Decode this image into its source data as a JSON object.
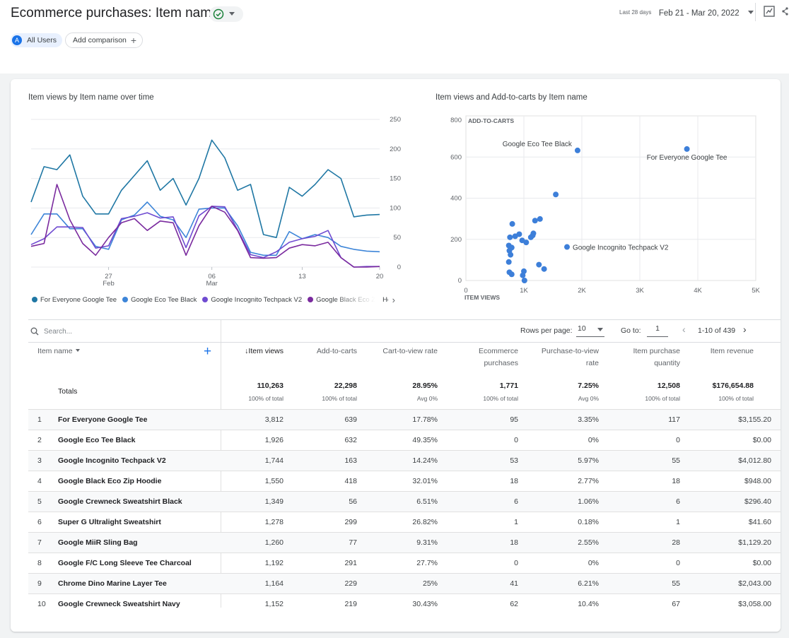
{
  "header": {
    "title": "Ecommerce purchases: Item name",
    "date_range_label": "Last 28 days",
    "date_range_value": "Feb 21 - Mar 20, 2022"
  },
  "comparisons": {
    "all_users_avatar": "A",
    "all_users_label": "All Users",
    "add_label": "Add comparison"
  },
  "line_chart": {
    "title": "Item views by Item name over time",
    "y_ticks": [
      "250",
      "200",
      "150",
      "100",
      "50",
      "0"
    ],
    "x_ticks": [
      {
        "day": "27",
        "month": "Feb"
      },
      {
        "day": "06",
        "month": "Mar"
      },
      {
        "day": "13",
        "month": ""
      },
      {
        "day": "20",
        "month": ""
      }
    ],
    "legend": [
      {
        "label": "For Everyone Google Tee",
        "color": "#1f77a4"
      },
      {
        "label": "Google Eco Tee Black",
        "color": "#3d85d8"
      },
      {
        "label": "Google Incognito Techpack V2",
        "color": "#6f4bd1"
      },
      {
        "label": "Google Black Eco Zip Hoodie",
        "color": "#7a2a9e"
      }
    ]
  },
  "scatter_chart": {
    "title": "Item views and Add-to-carts by Item name",
    "y_axis_label": "ADD-TO-CARTS",
    "x_axis_label": "ITEM VIEWS",
    "y_ticks": [
      "800",
      "600",
      "400",
      "200",
      "0"
    ],
    "x_ticks": [
      "0",
      "1K",
      "2K",
      "3K",
      "4K",
      "5K"
    ],
    "point_labels": [
      "Google Eco Tee Black",
      "For Everyone Google Tee",
      "Google Incognito Techpack V2"
    ]
  },
  "chart_data": [
    {
      "type": "line",
      "title": "Item views by Item name over time",
      "xlabel": "",
      "ylabel": "",
      "ylim": [
        0,
        250
      ],
      "x": [
        "Feb 21",
        "Feb 22",
        "Feb 23",
        "Feb 24",
        "Feb 25",
        "Feb 26",
        "Feb 27",
        "Feb 28",
        "Mar 01",
        "Mar 02",
        "Mar 03",
        "Mar 04",
        "Mar 05",
        "Mar 06",
        "Mar 07",
        "Mar 08",
        "Mar 09",
        "Mar 10",
        "Mar 11",
        "Mar 12",
        "Mar 13",
        "Mar 14",
        "Mar 15",
        "Mar 16",
        "Mar 17",
        "Mar 18",
        "Mar 19",
        "Mar 20"
      ],
      "series": [
        {
          "name": "For Everyone Google Tee",
          "values": [
            110,
            170,
            165,
            190,
            120,
            90,
            90,
            130,
            155,
            180,
            130,
            150,
            105,
            150,
            215,
            185,
            130,
            140,
            55,
            50,
            135,
            120,
            140,
            165,
            150,
            85,
            88,
            89
          ]
        },
        {
          "name": "Google Eco Tee Black",
          "values": [
            55,
            90,
            90,
            65,
            65,
            35,
            30,
            80,
            88,
            110,
            86,
            80,
            50,
            98,
            100,
            100,
            70,
            25,
            20,
            20,
            60,
            48,
            55,
            50,
            35,
            30,
            27,
            26
          ]
        },
        {
          "name": "Google Incognito Techpack V2",
          "values": [
            38,
            48,
            68,
            68,
            67,
            32,
            36,
            82,
            86,
            92,
            83,
            85,
            33,
            87,
            103,
            102,
            63,
            21,
            16,
            26,
            42,
            48,
            52,
            62,
            16,
            0,
            1,
            1
          ]
        },
        {
          "name": "Google Black Eco Zip Hoodie",
          "values": [
            35,
            40,
            140,
            80,
            40,
            20,
            50,
            75,
            82,
            62,
            78,
            75,
            20,
            70,
            103,
            93,
            62,
            16,
            15,
            16,
            32,
            38,
            36,
            42,
            16,
            0,
            0,
            1
          ]
        }
      ]
    },
    {
      "type": "scatter",
      "title": "Item views and Add-to-carts by Item name",
      "xlabel": "ITEM VIEWS",
      "ylabel": "ADD-TO-CARTS",
      "xlim": [
        0,
        5000
      ],
      "ylim": [
        0,
        800
      ],
      "points": [
        {
          "x": 3812,
          "y": 639,
          "label": "For Everyone Google Tee"
        },
        {
          "x": 1926,
          "y": 632,
          "label": "Google Eco Tee Black"
        },
        {
          "x": 1744,
          "y": 163,
          "label": "Google Incognito Techpack V2"
        },
        {
          "x": 1550,
          "y": 418
        },
        {
          "x": 1349,
          "y": 56
        },
        {
          "x": 1278,
          "y": 299
        },
        {
          "x": 1260,
          "y": 77
        },
        {
          "x": 1192,
          "y": 291
        },
        {
          "x": 1164,
          "y": 229
        },
        {
          "x": 1152,
          "y": 219
        },
        {
          "x": 800,
          "y": 275
        },
        {
          "x": 760,
          "y": 210
        },
        {
          "x": 850,
          "y": 215
        },
        {
          "x": 920,
          "y": 225
        },
        {
          "x": 970,
          "y": 195
        },
        {
          "x": 1040,
          "y": 185
        },
        {
          "x": 740,
          "y": 170
        },
        {
          "x": 790,
          "y": 160
        },
        {
          "x": 750,
          "y": 145
        },
        {
          "x": 770,
          "y": 125
        },
        {
          "x": 740,
          "y": 90
        },
        {
          "x": 750,
          "y": 40
        },
        {
          "x": 790,
          "y": 30
        },
        {
          "x": 1000,
          "y": 45
        },
        {
          "x": 980,
          "y": 25
        },
        {
          "x": 1010,
          "y": 0
        },
        {
          "x": 1120,
          "y": 210
        }
      ]
    }
  ],
  "search": {
    "placeholder": "Search..."
  },
  "pagination": {
    "rows_per_page_label": "Rows per page:",
    "rows_per_page_value": "10",
    "goto_label": "Go to:",
    "goto_value": "1",
    "range_label": "1-10 of 439"
  },
  "table": {
    "dimension_header": "Item name",
    "columns": [
      {
        "label": "Item views",
        "arrow": "↓",
        "total": "110,263",
        "sub": "100% of total"
      },
      {
        "label": "Add-to-carts",
        "arrow": "",
        "total": "22,298",
        "sub": "100% of total"
      },
      {
        "label": "Cart-to-view rate",
        "arrow": "",
        "total": "28.95%",
        "sub": "Avg 0%"
      },
      {
        "label": "Ecommerce purchases",
        "arrow": "",
        "total": "1,771",
        "sub": "100% of total"
      },
      {
        "label": "Purchase-to-view rate",
        "arrow": "",
        "total": "7.25%",
        "sub": "Avg 0%"
      },
      {
        "label": "Item purchase quantity",
        "arrow": "",
        "total": "12,508",
        "sub": "100% of total"
      },
      {
        "label": "Item revenue",
        "arrow": "",
        "total": "$176,654.88",
        "sub": "100% of total"
      }
    ],
    "totals_label": "Totals",
    "rows": [
      {
        "num": "1",
        "name": "For Everyone Google Tee",
        "views": "3,812",
        "atc": "639",
        "ctv": "17.78%",
        "ecp": "95",
        "ptv": "3.35%",
        "qty": "117",
        "rev": "$3,155.20"
      },
      {
        "num": "2",
        "name": "Google Eco Tee Black",
        "views": "1,926",
        "atc": "632",
        "ctv": "49.35%",
        "ecp": "0",
        "ptv": "0%",
        "qty": "0",
        "rev": "$0.00"
      },
      {
        "num": "3",
        "name": "Google Incognito Techpack V2",
        "views": "1,744",
        "atc": "163",
        "ctv": "14.24%",
        "ecp": "53",
        "ptv": "5.97%",
        "qty": "55",
        "rev": "$4,012.80"
      },
      {
        "num": "4",
        "name": "Google Black Eco Zip Hoodie",
        "views": "1,550",
        "atc": "418",
        "ctv": "32.01%",
        "ecp": "18",
        "ptv": "2.77%",
        "qty": "18",
        "rev": "$948.00"
      },
      {
        "num": "5",
        "name": "Google Crewneck Sweatshirt Black",
        "views": "1,349",
        "atc": "56",
        "ctv": "6.51%",
        "ecp": "6",
        "ptv": "1.06%",
        "qty": "6",
        "rev": "$296.40"
      },
      {
        "num": "6",
        "name": "Super G Ultralight Sweatshirt",
        "views": "1,278",
        "atc": "299",
        "ctv": "26.82%",
        "ecp": "1",
        "ptv": "0.18%",
        "qty": "1",
        "rev": "$41.60"
      },
      {
        "num": "7",
        "name": "Google MiiR Sling Bag",
        "views": "1,260",
        "atc": "77",
        "ctv": "9.31%",
        "ecp": "18",
        "ptv": "2.55%",
        "qty": "28",
        "rev": "$1,129.20"
      },
      {
        "num": "8",
        "name": "Google F/C Long Sleeve Tee Charcoal",
        "views": "1,192",
        "atc": "291",
        "ctv": "27.7%",
        "ecp": "0",
        "ptv": "0%",
        "qty": "0",
        "rev": "$0.00"
      },
      {
        "num": "9",
        "name": "Chrome Dino Marine Layer Tee",
        "views": "1,164",
        "atc": "229",
        "ctv": "25%",
        "ecp": "41",
        "ptv": "6.21%",
        "qty": "55",
        "rev": "$2,043.00"
      },
      {
        "num": "10",
        "name": "Google Crewneck Sweatshirt Navy",
        "views": "1,152",
        "atc": "219",
        "ctv": "30.43%",
        "ecp": "62",
        "ptv": "10.4%",
        "qty": "67",
        "rev": "$3,058.00"
      }
    ]
  },
  "colors": {
    "accent": "#1a73e8",
    "scatter_point": "#3d7fd9",
    "gridline": "#e8eaed",
    "status_ok": "#188038"
  }
}
